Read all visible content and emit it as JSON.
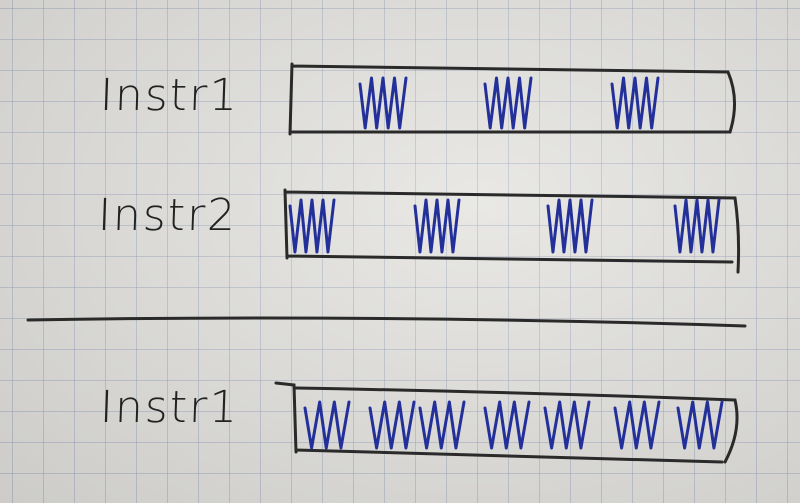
{
  "sections": {
    "top": {
      "rows": [
        {
          "label": "Instr1",
          "marks": 3
        },
        {
          "label": "Instr2",
          "marks": 4
        }
      ]
    },
    "bottom": {
      "rows": [
        {
          "label": "Instr1",
          "marks": 7
        }
      ]
    }
  },
  "colors": {
    "ink": "#2a2a2a",
    "blue_ink": "#23309a"
  }
}
